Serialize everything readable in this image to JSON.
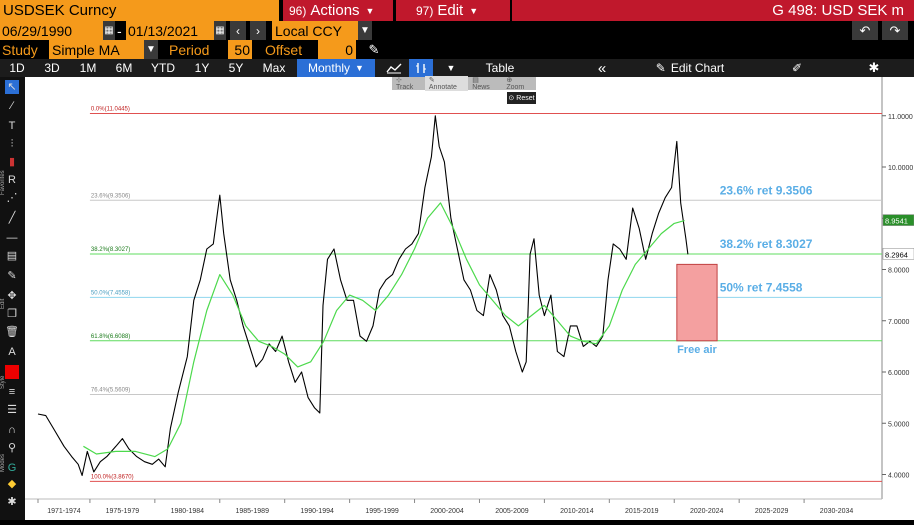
{
  "title": {
    "ticker": "USDSEK Curncy",
    "actions": "Actions",
    "actions_num": "96)",
    "edit": "Edit",
    "edit_num": "97)",
    "page": "G 498: USD SEK m"
  },
  "dates": {
    "start": "06/29/1990",
    "dash": "-",
    "end": "01/13/2021",
    "currency": "Local CCY"
  },
  "study": {
    "label": "Study",
    "value": "Simple MA",
    "period_label": "Period",
    "period": "50",
    "offset_label": "Offset",
    "offset": "0"
  },
  "toolbar": {
    "ranges": [
      "1D",
      "3D",
      "1M",
      "6M",
      "YTD",
      "1Y",
      "5Y",
      "Max"
    ],
    "frequency": "Monthly",
    "table": "Table",
    "edit_chart": "Edit Chart"
  },
  "chart_tools": {
    "track": "Track",
    "annotate": "Annotate",
    "news": "News",
    "zoom": "Zoom",
    "reset": "Reset"
  },
  "sidebar_labels": {
    "favorites": "Favorites",
    "edit": "Edit",
    "style": "Style",
    "modes": "Modes"
  },
  "chart_data": {
    "type": "line",
    "x_tick_labels": [
      "1971-1974",
      "1975-1979",
      "1980-1984",
      "1985-1989",
      "1990-1994",
      "1995-1999",
      "2000-2004",
      "2005-2009",
      "2010-2014",
      "2015-2019",
      "2020-2024",
      "2025-2029",
      "2030-2034"
    ],
    "x_range": [
      1970,
      2036
    ],
    "y_tick_labels": [
      "4.0000",
      "5.0000",
      "6.0000",
      "7.0000",
      "8.0000",
      "9.0000",
      "10.0000",
      "11.0000"
    ],
    "ylim": [
      3.6,
      11.6
    ],
    "series": [
      {
        "values": [
          [
            1971.0,
            5.18
          ],
          [
            1971.6,
            5.15
          ],
          [
            1972.3,
            4.85
          ],
          [
            1973.0,
            4.55
          ],
          [
            1973.6,
            4.35
          ],
          [
            1974.1,
            4.2
          ],
          [
            1974.4,
            3.98
          ],
          [
            1974.8,
            4.45
          ],
          [
            1975.3,
            4.05
          ],
          [
            1975.8,
            4.25
          ],
          [
            1976.3,
            4.35
          ],
          [
            1977.0,
            4.55
          ],
          [
            1977.5,
            4.7
          ],
          [
            1978.0,
            4.5
          ],
          [
            1978.6,
            4.35
          ],
          [
            1979.2,
            4.25
          ],
          [
            1979.8,
            4.2
          ],
          [
            1980.3,
            4.3
          ],
          [
            1980.8,
            4.15
          ],
          [
            1981.2,
            4.9
          ],
          [
            1981.8,
            5.6
          ],
          [
            1982.5,
            6.3
          ],
          [
            1983.0,
            7.4
          ],
          [
            1983.5,
            7.8
          ],
          [
            1984.0,
            8.4
          ],
          [
            1984.5,
            8.5
          ],
          [
            1985.0,
            9.45
          ],
          [
            1985.3,
            8.7
          ],
          [
            1985.8,
            7.8
          ],
          [
            1986.3,
            7.4
          ],
          [
            1986.8,
            6.9
          ],
          [
            1987.3,
            6.5
          ],
          [
            1987.8,
            6.1
          ],
          [
            1988.3,
            6.25
          ],
          [
            1988.8,
            6.55
          ],
          [
            1989.3,
            6.4
          ],
          [
            1989.8,
            6.7
          ],
          [
            1990.3,
            6.2
          ],
          [
            1990.8,
            5.8
          ],
          [
            1991.3,
            6.0
          ],
          [
            1991.8,
            5.5
          ],
          [
            1992.3,
            5.3
          ],
          [
            1992.7,
            5.2
          ],
          [
            1992.95,
            7.3
          ],
          [
            1993.3,
            8.2
          ],
          [
            1993.8,
            8.4
          ],
          [
            1994.3,
            7.8
          ],
          [
            1994.8,
            7.4
          ],
          [
            1995.3,
            7.4
          ],
          [
            1995.8,
            6.7
          ],
          [
            1996.3,
            6.6
          ],
          [
            1996.8,
            6.9
          ],
          [
            1997.3,
            7.6
          ],
          [
            1997.8,
            7.8
          ],
          [
            1998.3,
            7.9
          ],
          [
            1998.8,
            8.2
          ],
          [
            1999.3,
            8.4
          ],
          [
            1999.8,
            8.5
          ],
          [
            2000.3,
            8.7
          ],
          [
            2000.8,
            9.6
          ],
          [
            2001.3,
            10.2
          ],
          [
            2001.6,
            11.0
          ],
          [
            2001.9,
            10.4
          ],
          [
            2002.3,
            10.1
          ],
          [
            2002.8,
            9.0
          ],
          [
            2003.3,
            8.4
          ],
          [
            2003.8,
            7.8
          ],
          [
            2004.3,
            7.6
          ],
          [
            2004.8,
            7.2
          ],
          [
            2005.3,
            7.1
          ],
          [
            2005.8,
            7.9
          ],
          [
            2006.3,
            7.6
          ],
          [
            2006.8,
            7.1
          ],
          [
            2007.3,
            6.9
          ],
          [
            2007.8,
            6.4
          ],
          [
            2008.3,
            6.0
          ],
          [
            2008.6,
            6.2
          ],
          [
            2008.9,
            8.3
          ],
          [
            2009.2,
            8.6
          ],
          [
            2009.6,
            7.5
          ],
          [
            2010.0,
            7.1
          ],
          [
            2010.5,
            7.5
          ],
          [
            2011.0,
            6.4
          ],
          [
            2011.5,
            6.3
          ],
          [
            2012.0,
            6.9
          ],
          [
            2012.5,
            6.9
          ],
          [
            2013.0,
            6.5
          ],
          [
            2013.5,
            6.6
          ],
          [
            2014.0,
            6.5
          ],
          [
            2014.5,
            6.7
          ],
          [
            2014.9,
            7.8
          ],
          [
            2015.3,
            8.5
          ],
          [
            2015.8,
            8.4
          ],
          [
            2016.3,
            8.2
          ],
          [
            2016.8,
            9.2
          ],
          [
            2017.3,
            8.8
          ],
          [
            2017.8,
            8.2
          ],
          [
            2018.3,
            8.7
          ],
          [
            2018.8,
            9.1
          ],
          [
            2019.3,
            9.4
          ],
          [
            2019.8,
            9.6
          ],
          [
            2020.2,
            10.5
          ],
          [
            2020.5,
            9.3
          ],
          [
            2020.9,
            8.6
          ],
          [
            2021.05,
            8.2964
          ]
        ]
      },
      {
        "values": [
          [
            1974.5,
            4.55
          ],
          [
            1975.5,
            4.4
          ],
          [
            1977.0,
            4.45
          ],
          [
            1978.5,
            4.45
          ],
          [
            1980.0,
            4.35
          ],
          [
            1981.0,
            4.5
          ],
          [
            1982.0,
            5.0
          ],
          [
            1983.0,
            6.2
          ],
          [
            1984.0,
            7.2
          ],
          [
            1985.0,
            7.9
          ],
          [
            1986.0,
            7.5
          ],
          [
            1987.0,
            6.9
          ],
          [
            1988.0,
            6.6
          ],
          [
            1989.0,
            6.5
          ],
          [
            1990.0,
            6.35
          ],
          [
            1991.0,
            6.1
          ],
          [
            1992.0,
            6.2
          ],
          [
            1993.0,
            6.6
          ],
          [
            1994.0,
            7.2
          ],
          [
            1995.0,
            7.5
          ],
          [
            1996.0,
            7.4
          ],
          [
            1997.0,
            7.2
          ],
          [
            1998.0,
            7.5
          ],
          [
            1999.0,
            7.9
          ],
          [
            2000.0,
            8.4
          ],
          [
            2001.0,
            9.0
          ],
          [
            2002.0,
            9.3
          ],
          [
            2003.0,
            8.8
          ],
          [
            2004.0,
            8.2
          ],
          [
            2005.0,
            7.7
          ],
          [
            2006.0,
            7.4
          ],
          [
            2007.0,
            7.1
          ],
          [
            2008.0,
            6.9
          ],
          [
            2009.0,
            7.1
          ],
          [
            2010.0,
            7.3
          ],
          [
            2011.0,
            7.0
          ],
          [
            2012.0,
            6.7
          ],
          [
            2013.0,
            6.6
          ],
          [
            2014.0,
            6.55
          ],
          [
            2015.0,
            6.9
          ],
          [
            2016.0,
            7.6
          ],
          [
            2017.0,
            8.1
          ],
          [
            2018.0,
            8.4
          ],
          [
            2019.0,
            8.7
          ],
          [
            2020.0,
            8.9
          ],
          [
            2020.8,
            8.9541
          ]
        ]
      }
    ],
    "last_values": [
      "8.9541",
      "8.2964"
    ],
    "fib_levels": [
      {
        "label": "0.0%(11.0445)",
        "value": 11.0445,
        "color": "#e05050"
      },
      {
        "label": "23.6%(9.3506)",
        "value": 9.3506,
        "color": "#c8c8c8"
      },
      {
        "label": "38.2%(8.3027)",
        "value": 8.3027,
        "color": "#5fdc5f"
      },
      {
        "label": "50.0%(7.4558)",
        "value": 7.4558,
        "color": "#8fd6ee"
      },
      {
        "label": "61.8%(6.6088)",
        "value": 6.6088,
        "color": "#5fdc5f"
      },
      {
        "label": "76.4%(5.5609)",
        "value": 5.5609,
        "color": "#c8c8c8"
      },
      {
        "label": "100.0%(3.8670)",
        "value": 3.867,
        "color": "#e05050"
      }
    ],
    "annotations": [
      {
        "text": "23.6% ret 9.3506",
        "x": 2023.5,
        "y": 9.3506
      },
      {
        "text": "38.2% ret 8.3027",
        "x": 2023.5,
        "y": 8.3027
      },
      {
        "text": "50% ret 7.4558",
        "x": 2023.5,
        "y": 7.4558
      }
    ],
    "box": {
      "label": "Free air",
      "x0": 2020.2,
      "x1": 2023.3,
      "y0": 6.6088,
      "y1": 8.1
    },
    "colors": {
      "price": "#000000",
      "ma": "#4cd94c",
      "annotation": "#5aaee6",
      "box": "#f4a0a0",
      "label_green": "#1a7a1a"
    }
  }
}
